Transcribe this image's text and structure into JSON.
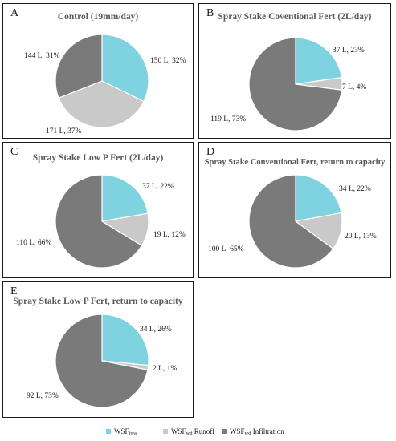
{
  "colors": {
    "wsf_iwa": "#7fd3e0",
    "runoff": "#c9c9c9",
    "infiltration": "#7a7a7a"
  },
  "legend": [
    {
      "base": "WSF",
      "sub": "iwa",
      "tail": "",
      "color_key": "wsf_iwa"
    },
    {
      "base": "WSF",
      "sub": "wd",
      "tail": " Runoff",
      "color_key": "runoff"
    },
    {
      "base": "WSF",
      "sub": "wd",
      "tail": " Infiltration",
      "color_key": "infiltration"
    }
  ],
  "chart_data": [
    {
      "type": "pie",
      "panel": "A",
      "title": "Control (19mm/day)",
      "slices": [
        {
          "series": "WSFiwa",
          "value_l": 150,
          "percent": 32,
          "label": "150 L, 32%"
        },
        {
          "series": "WSFwd Runoff",
          "value_l": 171,
          "percent": 37,
          "label": "171 L, 37%"
        },
        {
          "series": "WSFwd Infiltration",
          "value_l": 144,
          "percent": 31,
          "label": "144 L, 31%"
        }
      ]
    },
    {
      "type": "pie",
      "panel": "B",
      "title": "Spray Stake Coventional Fert (2L/day)",
      "slices": [
        {
          "series": "WSFiwa",
          "value_l": 37,
          "percent": 23,
          "label": "37 L, 23%"
        },
        {
          "series": "WSFwd Runoff",
          "value_l": 7,
          "percent": 4,
          "label": "7 L, 4%"
        },
        {
          "series": "WSFwd Infiltration",
          "value_l": 119,
          "percent": 73,
          "label": "119 L, 73%"
        }
      ]
    },
    {
      "type": "pie",
      "panel": "C",
      "title": "Spray Stake Low P Fert (2L/day)",
      "slices": [
        {
          "series": "WSFiwa",
          "value_l": 37,
          "percent": 22,
          "label": "37 L, 22%"
        },
        {
          "series": "WSFwd Runoff",
          "value_l": 19,
          "percent": 12,
          "label": "19 L, 12%"
        },
        {
          "series": "WSFwd Infiltration",
          "value_l": 110,
          "percent": 66,
          "label": "110 L, 66%"
        }
      ]
    },
    {
      "type": "pie",
      "panel": "D",
      "title": "Spray Stake Conventional Fert, return to capacity",
      "slices": [
        {
          "series": "WSFiwa",
          "value_l": 34,
          "percent": 22,
          "label": "34 L, 22%"
        },
        {
          "series": "WSFwd Runoff",
          "value_l": 20,
          "percent": 13,
          "label": "20 L, 13%"
        },
        {
          "series": "WSFwd Infiltration",
          "value_l": 100,
          "percent": 65,
          "label": "100 L, 65%"
        }
      ]
    },
    {
      "type": "pie",
      "panel": "E",
      "title": "Spray Stake Low P Fert, return to capacity",
      "slices": [
        {
          "series": "WSFiwa",
          "value_l": 34,
          "percent": 26,
          "label": "34 L, 26%"
        },
        {
          "series": "WSFwd Runoff",
          "value_l": 2,
          "percent": 1,
          "label": "2 L, 1%"
        },
        {
          "series": "WSFwd Infiltration",
          "value_l": 92,
          "percent": 73,
          "label": "92 L, 73%"
        }
      ]
    }
  ]
}
